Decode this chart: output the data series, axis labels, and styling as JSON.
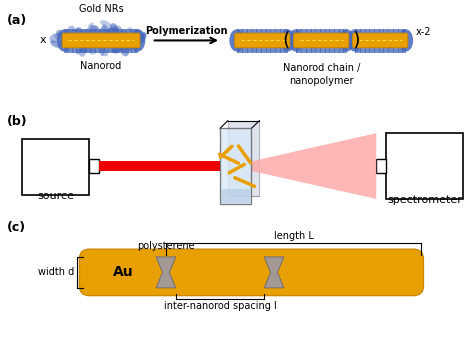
{
  "panel_a_label": "(a)",
  "panel_b_label": "(b)",
  "panel_c_label": "(c)",
  "gold_nrs_label": "Gold NRs",
  "nanorod_label": "Nanorod",
  "polymerization_label": "Polymerization",
  "nanorod_chain_label": "Nanorod chain /\nnanopolymer",
  "x_label": "x",
  "x2_label": "x-2",
  "source_label": "source",
  "spectrometer_label": "spectrometer",
  "polysterene_label": "polysterene",
  "length_L_label": "length L",
  "width_d_label": "width d",
  "inter_label": "inter-nanorod spacing l",
  "au_label": "Au",
  "gold_color": "#E8A000",
  "gold_dark": "#CC8800",
  "blue_polymer_color": "#4466BB",
  "gray_ps_color": "#9999AA",
  "red_beam_color": "#EE0000",
  "pink_beam_color": "#FFAAAA",
  "background": "#FFFFFF",
  "cuv_face_color": "#D8E8F8",
  "cuv_edge_color": "#888888"
}
